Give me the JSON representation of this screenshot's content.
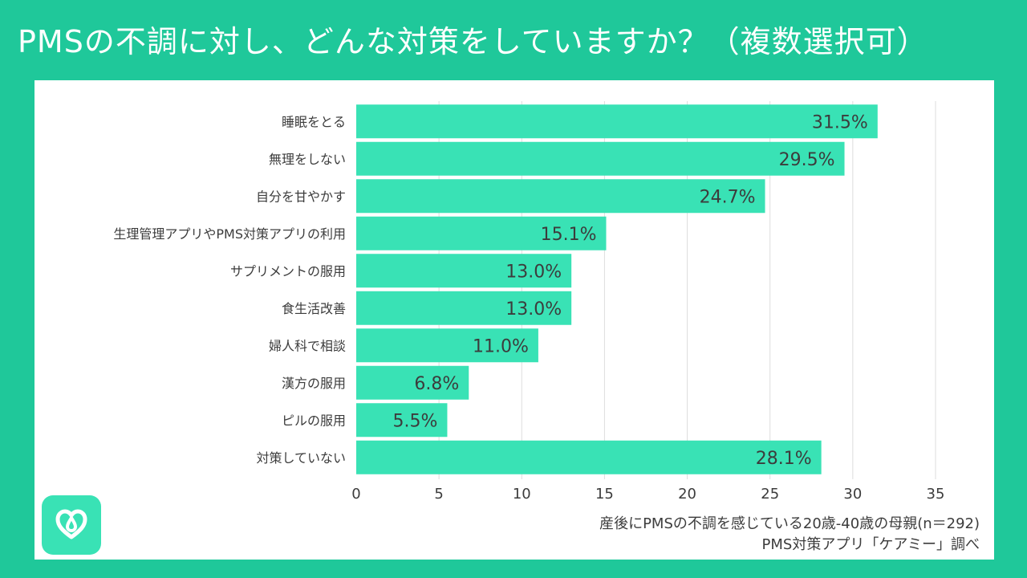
{
  "title": "PMSの不調に対し、どんな対策をしていますか？（複数選択可）",
  "chart_data": {
    "type": "bar",
    "orientation": "horizontal",
    "title": "PMSの不調に対し、どんな対策をしていますか？（複数選択可）",
    "categories": [
      "睡眠をとる",
      "無理をしない",
      "自分を甘やかす",
      "生理管理アプリやPMS対策アプリの利用",
      "サプリメントの服用",
      "食生活改善",
      "婦人科で相談",
      "漢方の服用",
      "ピルの服用",
      "対策していない"
    ],
    "values": [
      31.5,
      29.5,
      24.7,
      15.1,
      13.0,
      13.0,
      11.0,
      6.8,
      5.5,
      28.1
    ],
    "value_labels": [
      "31.5%",
      "29.5%",
      "24.7%",
      "15.1%",
      "13.0%",
      "13.0%",
      "11.0%",
      "6.8%",
      "5.5%",
      "28.1%"
    ],
    "xlim": [
      0,
      35
    ],
    "xticks": [
      0,
      5,
      10,
      15,
      20,
      25,
      30,
      35
    ],
    "xlabel": "",
    "ylabel": "",
    "grid": true,
    "bar_color": "#39e2b5"
  },
  "footer": {
    "source_line1": "産後にPMSの不調を感じている20歳-40歳の母親(n＝292)",
    "source_line2": "PMS対策アプリ「ケアミー」調べ"
  },
  "logo": {
    "icon": "heart-drop-icon"
  },
  "colors": {
    "background": "#1fc89a",
    "panel": "#ffffff",
    "bar": "#39e2b5",
    "text": "#3c3c3c",
    "grid": "#dddddd"
  }
}
